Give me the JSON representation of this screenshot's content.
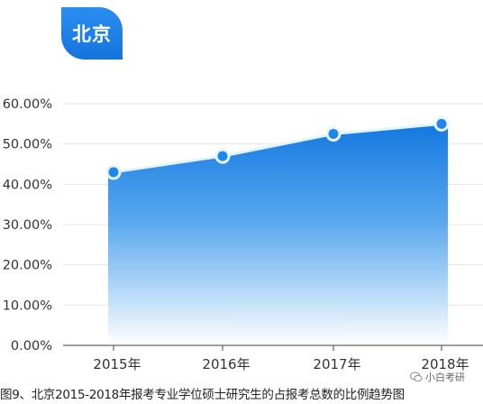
{
  "badge": {
    "label": "北京"
  },
  "caption": "图9、北京2015-2018年报考专业学位硕士研究生的占报考总数的比例趋势图",
  "watermark": "小白考研",
  "colors": {
    "accent": "#1a7fe8",
    "badge": "#1c7ee6",
    "line": "#e2f4ff"
  },
  "icons": {
    "watermark": "wechat-icon"
  },
  "chart_data": {
    "type": "area",
    "categories": [
      "2015年",
      "2016年",
      "2017年",
      "2018年"
    ],
    "values": [
      43.0,
      47.0,
      52.5,
      55.0
    ],
    "ylim": [
      0,
      60
    ],
    "yticks": [
      "0.00%",
      "10.00%",
      "20.00%",
      "30.00%",
      "40.00%",
      "50.00%",
      "60.00%"
    ],
    "grid": true
  }
}
